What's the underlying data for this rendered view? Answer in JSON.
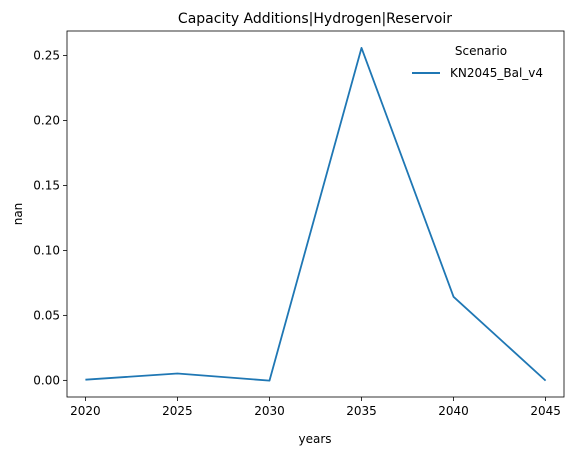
{
  "chart_data": {
    "type": "line",
    "title": "Capacity Additions|Hydrogen|Reservoir",
    "xlabel": "years",
    "ylabel": "nan",
    "x": [
      2020,
      2025,
      2030,
      2035,
      2040,
      2045
    ],
    "x_ticks": [
      "2020",
      "2025",
      "2030",
      "2035",
      "2040",
      "2045"
    ],
    "y_ticks": [
      "0.00",
      "0.05",
      "0.10",
      "0.15",
      "0.20",
      "0.25"
    ],
    "y_tick_values": [
      0.0,
      0.05,
      0.1,
      0.15,
      0.2,
      0.25
    ],
    "xlim": [
      2019,
      2046
    ],
    "ylim": [
      -0.0128,
      0.2688
    ],
    "grid": false,
    "legend": {
      "title": "Scenario",
      "placement": "top-right"
    },
    "series": [
      {
        "name": "KN2045_Bal_v4",
        "color": "#1f77b4",
        "values": [
          0.0005,
          0.0053,
          -0.0002,
          0.2558,
          0.0643,
          -0.0002
        ]
      }
    ]
  }
}
